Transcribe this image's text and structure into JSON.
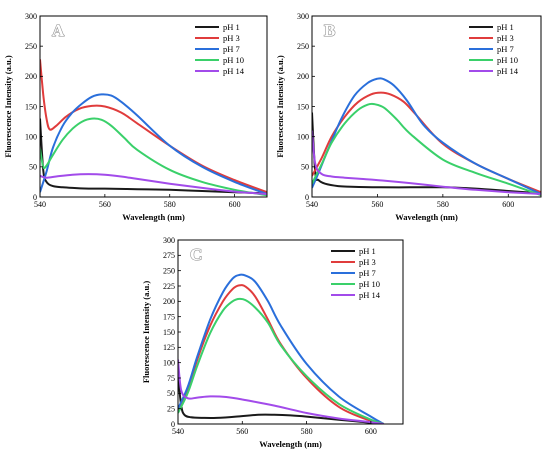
{
  "chart_data": [
    {
      "type": "line",
      "panel_label": "A",
      "xlabel": "Wavelength (nm)",
      "ylabel": "Fluorescence Intensity (a.u.)",
      "xlim": [
        540,
        610
      ],
      "ylim": [
        0,
        300
      ],
      "xticks": [
        540,
        560,
        580,
        600
      ],
      "yticks": [
        0,
        50,
        100,
        150,
        200,
        250,
        300
      ],
      "legend_position": "top-right",
      "series": [
        {
          "name": "pH 1",
          "color": "#1a1a1a",
          "x": [
            540,
            541,
            542,
            544,
            547,
            550,
            555,
            560,
            570,
            580,
            590,
            600,
            610
          ],
          "y": [
            130,
            45,
            25,
            18,
            16,
            15,
            14,
            14,
            13,
            12,
            10,
            8,
            6
          ]
        },
        {
          "name": "pH 3",
          "color": "#e03c3c",
          "x": [
            540,
            541,
            542,
            543,
            545,
            548,
            552,
            556,
            560,
            565,
            570,
            580,
            590,
            600,
            610
          ],
          "y": [
            228,
            170,
            130,
            112,
            118,
            133,
            146,
            151,
            150,
            140,
            122,
            85,
            52,
            28,
            8
          ]
        },
        {
          "name": "pH 7",
          "color": "#2a6fdb",
          "x": [
            540,
            542,
            544,
            547,
            550,
            553,
            556,
            559,
            562,
            565,
            570,
            580,
            590,
            600,
            610
          ],
          "y": [
            8,
            42,
            82,
            118,
            140,
            155,
            166,
            170,
            168,
            158,
            135,
            85,
            50,
            25,
            5
          ]
        },
        {
          "name": "pH 10",
          "color": "#3ad06a",
          "x": [
            540,
            541,
            542,
            544,
            547,
            550,
            553,
            556,
            559,
            562,
            566,
            570,
            580,
            590,
            600,
            610
          ],
          "y": [
            80,
            50,
            52,
            70,
            95,
            113,
            125,
            130,
            128,
            118,
            98,
            78,
            45,
            25,
            12,
            3
          ]
        },
        {
          "name": "pH 14",
          "color": "#a24bea",
          "x": [
            540,
            542,
            545,
            550,
            555,
            560,
            565,
            570,
            580,
            590,
            600,
            610
          ],
          "y": [
            35,
            32,
            34,
            37,
            38,
            37,
            34,
            30,
            22,
            15,
            9,
            5
          ]
        }
      ]
    },
    {
      "type": "line",
      "panel_label": "B",
      "xlabel": "Wavelength (nm)",
      "ylabel": "Fluorescence Intensity (a.u.)",
      "xlim": [
        540,
        610
      ],
      "ylim": [
        0,
        300
      ],
      "xticks": [
        540,
        560,
        580,
        600
      ],
      "yticks": [
        0,
        50,
        100,
        150,
        200,
        250,
        300
      ],
      "legend_position": "top-right",
      "series": [
        {
          "name": "pH 1",
          "color": "#1a1a1a",
          "x": [
            540,
            541,
            542,
            544,
            548,
            552,
            560,
            570,
            580,
            590,
            600,
            610
          ],
          "y": [
            140,
            40,
            28,
            22,
            18,
            17,
            16,
            16,
            16,
            14,
            10,
            6
          ]
        },
        {
          "name": "pH 3",
          "color": "#e03c3c",
          "x": [
            540,
            543,
            546,
            550,
            554,
            558,
            561,
            564,
            568,
            572,
            580,
            590,
            600,
            610
          ],
          "y": [
            35,
            65,
            100,
            133,
            157,
            170,
            173,
            170,
            158,
            135,
            88,
            55,
            30,
            8
          ]
        },
        {
          "name": "pH 7",
          "color": "#2a6fdb",
          "x": [
            540,
            542,
            545,
            549,
            553,
            557,
            560,
            562,
            565,
            569,
            574,
            580,
            590,
            600,
            610
          ],
          "y": [
            15,
            40,
            80,
            130,
            168,
            189,
            196,
            195,
            185,
            160,
            120,
            90,
            55,
            30,
            5
          ]
        },
        {
          "name": "pH 10",
          "color": "#3ad06a",
          "x": [
            540,
            543,
            546,
            550,
            554,
            557,
            559,
            562,
            566,
            570,
            580,
            590,
            600,
            610
          ],
          "y": [
            22,
            55,
            90,
            122,
            144,
            153,
            154,
            148,
            128,
            105,
            62,
            40,
            22,
            3
          ]
        },
        {
          "name": "pH 14",
          "color": "#a24bea",
          "x": [
            540,
            541,
            543,
            546,
            550,
            555,
            560,
            570,
            580,
            590,
            600,
            610
          ],
          "y": [
            110,
            55,
            38,
            34,
            32,
            30,
            28,
            23,
            17,
            12,
            8,
            5
          ]
        }
      ]
    },
    {
      "type": "line",
      "panel_label": "C",
      "xlabel": "Wavelength (nm)",
      "ylabel": "Fluorescence Intensity (a.u.)",
      "xlim": [
        540,
        610
      ],
      "ylim": [
        0,
        300
      ],
      "xticks": [
        540,
        560,
        580,
        600
      ],
      "yticks": [
        0,
        25,
        50,
        75,
        100,
        125,
        150,
        175,
        200,
        225,
        250,
        275,
        300
      ],
      "legend_position": "top-right",
      "series": [
        {
          "name": "pH 1",
          "color": "#1a1a1a",
          "x": [
            540,
            541,
            542,
            544,
            548,
            552,
            558,
            565,
            570,
            575,
            580,
            590,
            600,
            604
          ],
          "y": [
            80,
            30,
            15,
            11,
            10,
            10,
            12,
            15,
            15,
            14,
            12,
            7,
            2,
            0
          ]
        },
        {
          "name": "pH 3",
          "color": "#e03c3c",
          "x": [
            540,
            543,
            546,
            550,
            554,
            557,
            559,
            561,
            564,
            568,
            572,
            580,
            590,
            600,
            604
          ],
          "y": [
            20,
            55,
            105,
            160,
            200,
            220,
            226,
            224,
            208,
            170,
            130,
            75,
            28,
            5,
            0
          ]
        },
        {
          "name": "pH 7",
          "color": "#2a6fdb",
          "x": [
            540,
            543,
            546,
            550,
            554,
            557,
            559,
            561,
            564,
            568,
            572,
            580,
            590,
            600,
            604
          ],
          "y": [
            25,
            60,
            110,
            170,
            215,
            237,
            243,
            242,
            232,
            200,
            160,
            98,
            45,
            12,
            0
          ]
        },
        {
          "name": "pH 10",
          "color": "#3ad06a",
          "x": [
            540,
            543,
            546,
            550,
            554,
            557,
            559,
            561,
            564,
            568,
            572,
            580,
            590,
            600,
            604
          ],
          "y": [
            18,
            50,
            95,
            148,
            185,
            200,
            204,
            202,
            190,
            165,
            128,
            78,
            33,
            7,
            0
          ]
        },
        {
          "name": "pH 14",
          "color": "#a24bea",
          "x": [
            540,
            541,
            543,
            546,
            550,
            555,
            560,
            565,
            570,
            580,
            590,
            600,
            604
          ],
          "y": [
            105,
            55,
            42,
            43,
            45,
            44,
            40,
            35,
            30,
            18,
            9,
            3,
            0
          ]
        }
      ]
    }
  ]
}
